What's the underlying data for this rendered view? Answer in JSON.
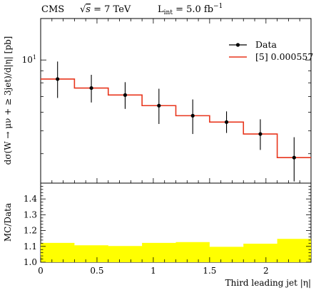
{
  "header": {
    "experiment": "CMS",
    "energy_prefix": "√",
    "energy_var": "s",
    "energy_rest": " = 7 TeV",
    "lumi_L": "L",
    "lumi_sub": "int",
    "lumi_rest": " = 5.0 fb",
    "lumi_exp": "−1"
  },
  "chart_data": [
    {
      "type": "line",
      "panel": "main",
      "ylabel": "dσ(W → μν + ≥ 3jet)/d|η| [pb]",
      "yscale": "log",
      "ylim": [
        3.0,
        15.0
      ],
      "xlim": [
        0,
        2.4
      ],
      "y_tick_labels": [
        {
          "value": 10,
          "label": "10",
          "exp": "1"
        }
      ],
      "legend": {
        "placement": "top-right",
        "entries": [
          {
            "label": "Data",
            "style": "marker-errorbar"
          },
          {
            "label": "[5] 0.000557",
            "style": "red-line"
          }
        ]
      },
      "series": [
        {
          "name": "Data",
          "x": [
            0.15,
            0.45,
            0.75,
            1.05,
            1.35,
            1.65,
            1.95,
            2.25
          ],
          "y": [
            8.3,
            7.6,
            7.1,
            6.4,
            5.8,
            5.45,
            4.85,
            3.85
          ],
          "err_up": [
            1.55,
            1.05,
            0.95,
            1.15,
            1.0,
            0.6,
            0.75,
            0.85
          ],
          "err_down": [
            1.4,
            1.0,
            0.9,
            1.05,
            0.95,
            0.55,
            0.7,
            0.8
          ]
        },
        {
          "name": "[5] 0.000557",
          "bin_edges": [
            0,
            0.3,
            0.6,
            0.9,
            1.2,
            1.5,
            1.8,
            2.1,
            2.4
          ],
          "values": [
            8.3,
            7.6,
            7.1,
            6.4,
            5.8,
            5.45,
            4.85,
            3.85
          ]
        }
      ]
    },
    {
      "type": "area",
      "panel": "ratio",
      "ylabel": "MC/Data",
      "xlabel": "Third leading jet |η|",
      "xlim": [
        0,
        2.4
      ],
      "ylim": [
        1.0,
        1.5
      ],
      "x_ticks": [
        0,
        0.5,
        1,
        1.5,
        2
      ],
      "x_tick_labels": [
        "0",
        "0.5",
        "1",
        "1.5",
        "2"
      ],
      "y_ticks": [
        1.0,
        1.1,
        1.2,
        1.3,
        1.4
      ],
      "y_tick_labels": [
        "1.0",
        "1.1",
        "1.2",
        "1.3",
        "1.4"
      ],
      "bin_edges": [
        0,
        0.3,
        0.6,
        0.9,
        1.2,
        1.5,
        1.8,
        2.1,
        2.4
      ],
      "values": [
        1.12,
        1.105,
        1.1,
        1.12,
        1.125,
        1.095,
        1.115,
        1.145
      ]
    }
  ],
  "colors": {
    "mc_line": "#e8351c",
    "ratio_band": "#ffff00",
    "data_marker": "#000000"
  }
}
